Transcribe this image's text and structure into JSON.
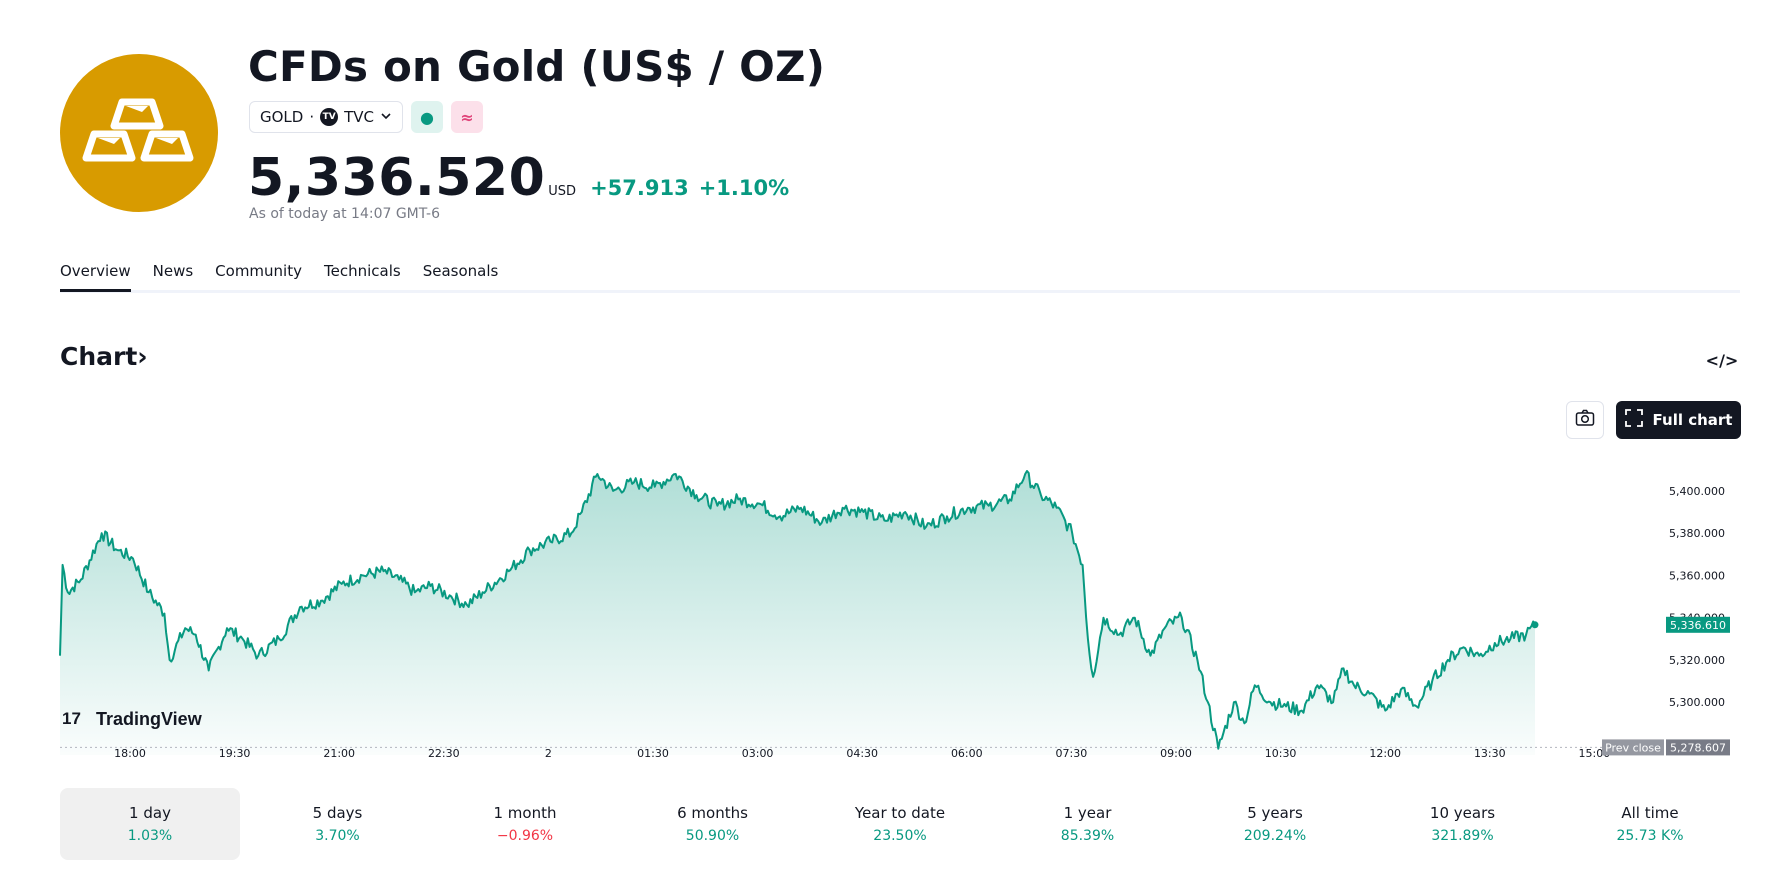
{
  "header": {
    "title": "CFDs on Gold (US$ / OZ)",
    "symbol": "GOLD",
    "separator": "·",
    "exchange": "TVC",
    "exchange_badge": "TV",
    "status_dot": "●",
    "status_approx": "≈",
    "price": "5,336.520",
    "currency": "USD",
    "change_abs": "+57.913",
    "change_pct": "+1.10%",
    "as_of": "As of today at 14:07 GMT-6",
    "colors": {
      "logo_bg": "#d89b00",
      "positive": "#089981",
      "negative": "#f23645"
    }
  },
  "tabs": [
    {
      "label": "Overview",
      "active": true
    },
    {
      "label": "News",
      "active": false
    },
    {
      "label": "Community",
      "active": false
    },
    {
      "label": "Technicals",
      "active": false
    },
    {
      "label": "Seasonals",
      "active": false
    }
  ],
  "chart_section": {
    "heading": "Chart",
    "heading_arrow": "›",
    "embed_icon": "</>",
    "full_chart_label": "Full chart",
    "brand": "TradingView",
    "brand_mark": "17"
  },
  "chart_data": {
    "type": "area",
    "x_ticks": [
      "18:00",
      "19:30",
      "21:00",
      "22:30",
      "2",
      "01:30",
      "03:00",
      "04:30",
      "06:00",
      "07:30",
      "09:00",
      "10:30",
      "12:00",
      "13:30",
      "15:00"
    ],
    "y_ticks": [
      "5,400.000",
      "5,380.000",
      "5,360.000",
      "5,340.000",
      "5,320.000",
      "5,300.000"
    ],
    "ylim": [
      5275,
      5417
    ],
    "last_value": 5336.61,
    "last_value_label": "5,336.610",
    "prev_close": 5278.607,
    "prev_close_label": "5,278.607",
    "prev_close_tag": "Prev close",
    "line_color": "#089981",
    "series_keypoints": [
      [
        0,
        5322
      ],
      [
        0.5,
        5365
      ],
      [
        1.5,
        5352
      ],
      [
        4,
        5358
      ],
      [
        8,
        5380
      ],
      [
        11,
        5372
      ],
      [
        14,
        5368
      ],
      [
        17,
        5352
      ],
      [
        20,
        5342
      ],
      [
        21,
        5320
      ],
      [
        24,
        5335
      ],
      [
        26,
        5332
      ],
      [
        28.5,
        5315
      ],
      [
        32,
        5335
      ],
      [
        35,
        5330
      ],
      [
        38,
        5322
      ],
      [
        42,
        5330
      ],
      [
        46,
        5345
      ],
      [
        50,
        5348
      ],
      [
        54,
        5356
      ],
      [
        58,
        5360
      ],
      [
        62,
        5362
      ],
      [
        65,
        5358
      ],
      [
        68,
        5352
      ],
      [
        71,
        5355
      ],
      [
        75,
        5350
      ],
      [
        78,
        5346
      ],
      [
        81,
        5352
      ],
      [
        86,
        5362
      ],
      [
        90,
        5372
      ],
      [
        94,
        5376
      ],
      [
        98,
        5380
      ],
      [
        100,
        5390
      ],
      [
        103,
        5408
      ],
      [
        106,
        5400
      ],
      [
        110,
        5404
      ],
      [
        114,
        5402
      ],
      [
        118,
        5408
      ],
      [
        122,
        5398
      ],
      [
        126,
        5393
      ],
      [
        130,
        5396
      ],
      [
        134,
        5394
      ],
      [
        138,
        5388
      ],
      [
        142,
        5392
      ],
      [
        146,
        5385
      ],
      [
        150,
        5392
      ],
      [
        154,
        5390
      ],
      [
        158,
        5386
      ],
      [
        162,
        5390
      ],
      [
        166,
        5383
      ],
      [
        170,
        5388
      ],
      [
        174,
        5392
      ],
      [
        178,
        5393
      ],
      [
        182,
        5396
      ],
      [
        185,
        5408
      ],
      [
        188,
        5398
      ],
      [
        191,
        5392
      ],
      [
        194,
        5380
      ],
      [
        196,
        5365
      ],
      [
        197,
        5330
      ],
      [
        198,
        5312
      ],
      [
        200,
        5340
      ],
      [
        203,
        5332
      ],
      [
        206,
        5340
      ],
      [
        209,
        5322
      ],
      [
        212,
        5336
      ],
      [
        215,
        5340
      ],
      [
        218,
        5320
      ],
      [
        220,
        5300
      ],
      [
        222,
        5278
      ],
      [
        225,
        5300
      ],
      [
        227,
        5290
      ],
      [
        229,
        5308
      ],
      [
        232,
        5300
      ],
      [
        235,
        5298
      ],
      [
        238,
        5296
      ],
      [
        241,
        5308
      ],
      [
        244,
        5300
      ],
      [
        246,
        5316
      ],
      [
        248,
        5308
      ],
      [
        251,
        5304
      ],
      [
        254,
        5296
      ],
      [
        257,
        5306
      ],
      [
        260,
        5298
      ],
      [
        263,
        5310
      ],
      [
        266,
        5320
      ],
      [
        269,
        5326
      ],
      [
        272,
        5322
      ],
      [
        275,
        5328
      ],
      [
        278,
        5330
      ],
      [
        281,
        5332
      ],
      [
        282.7,
        5336.6
      ]
    ]
  },
  "periods": [
    {
      "label": "1 day",
      "value": "1.03%",
      "trend": "pos",
      "active": true
    },
    {
      "label": "5 days",
      "value": "3.70%",
      "trend": "pos",
      "active": false
    },
    {
      "label": "1 month",
      "value": "−0.96%",
      "trend": "neg",
      "active": false
    },
    {
      "label": "6 months",
      "value": "50.90%",
      "trend": "pos",
      "active": false
    },
    {
      "label": "Year to date",
      "value": "23.50%",
      "trend": "pos",
      "active": false
    },
    {
      "label": "1 year",
      "value": "85.39%",
      "trend": "pos",
      "active": false
    },
    {
      "label": "5 years",
      "value": "209.24%",
      "trend": "pos",
      "active": false
    },
    {
      "label": "10 years",
      "value": "321.89%",
      "trend": "pos",
      "active": false
    },
    {
      "label": "All time",
      "value": "25.73 K%",
      "trend": "pos",
      "active": false
    }
  ],
  "icons": {
    "logo": "gold-bars-icon",
    "camera": "camera-icon",
    "fullscreen": "fullscreen-icon",
    "chevron": "chevron-down-icon",
    "embed": "embed-code-icon"
  }
}
